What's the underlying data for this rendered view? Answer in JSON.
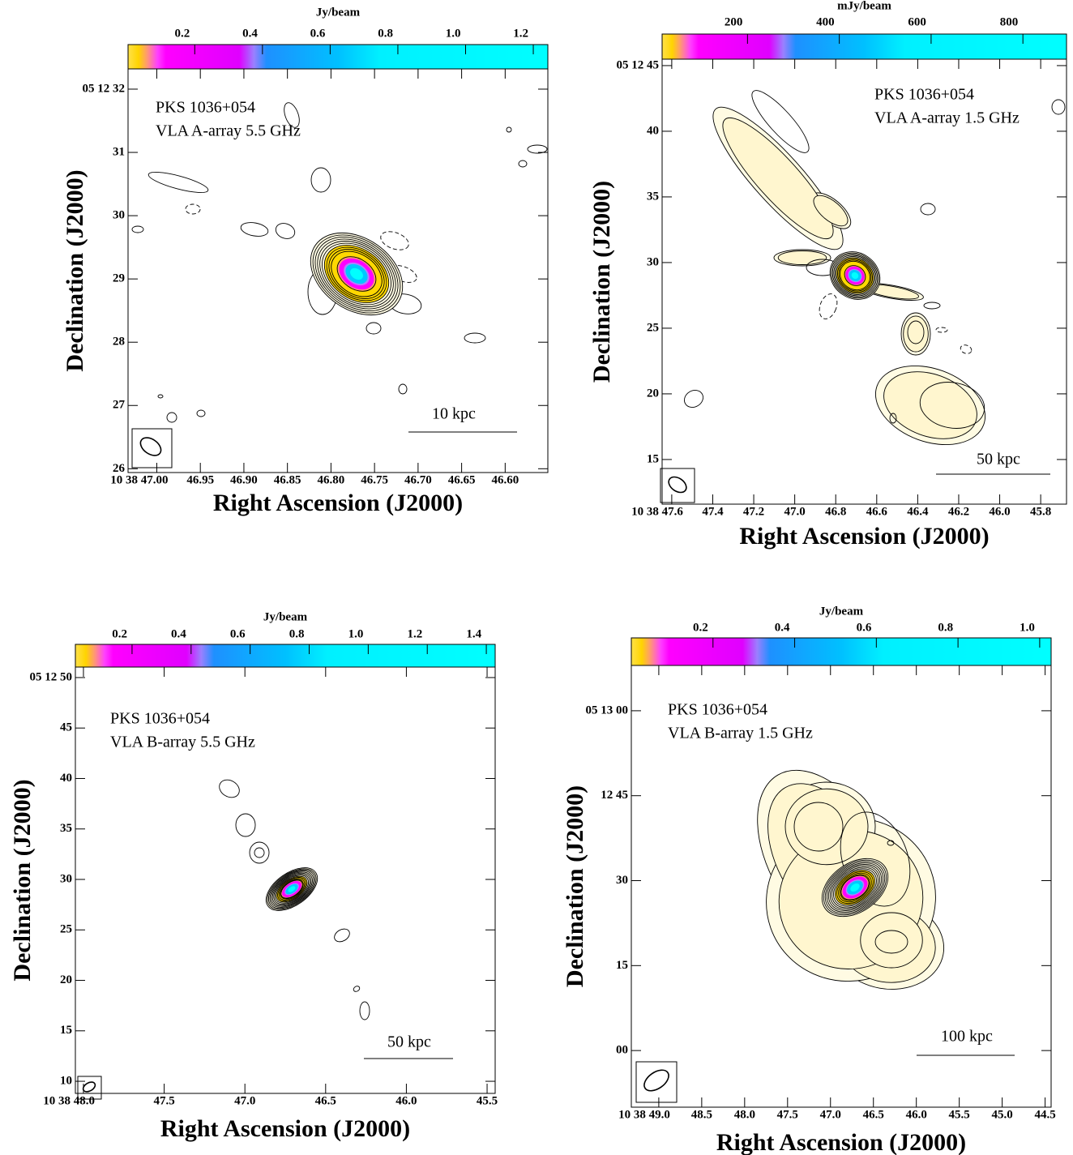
{
  "chart_data": [
    {
      "type": "contour",
      "colorbar_label": "Jy/beam",
      "clim": [
        0.003,
        1.243
      ],
      "cticks": [
        0.2,
        0.4,
        0.6,
        0.8,
        {
          "value": 1,
          "label": "1.0"
        },
        1.2
      ],
      "xlabel": "Right Ascension (J2000)",
      "ylabel": "Declination (J2000)",
      "xlim": [
        47.033,
        46.551
      ],
      "xticks": [
        {
          "value": 47,
          "label": "10 38 47.00"
        },
        46.95,
        {
          "value": 46.9,
          "label": "46.90"
        },
        46.85,
        {
          "value": 46.8,
          "label": "46.80"
        },
        46.75,
        {
          "value": 46.7,
          "label": "46.70"
        },
        46.65,
        {
          "value": 46.6,
          "label": "46.60"
        }
      ],
      "ylim": [
        25.94,
        32.32
      ],
      "yticks": [
        {
          "value": 32,
          "label": "05 12 32"
        },
        31,
        30,
        29,
        28,
        27,
        26
      ],
      "source": "PKS 1036+054",
      "config": "VLA A-array 5.5 GHz",
      "scale_bar": "10 kpc"
    },
    {
      "type": "contour",
      "colorbar_label": "mJy/beam",
      "clim": [
        14,
        895
      ],
      "cticks": [
        200,
        400,
        600,
        800
      ],
      "xlabel": "Right Ascension (J2000)",
      "ylabel": "Declination (J2000)",
      "xlim": [
        47.647,
        45.674
      ],
      "xticks": [
        {
          "value": 47.6,
          "label": "10 38 47.6"
        },
        47.4,
        47.2,
        {
          "value": 47,
          "label": "47.0"
        },
        46.8,
        46.6,
        46.4,
        46.2,
        {
          "value": 46,
          "label": "46.0"
        },
        45.8
      ],
      "ylim": [
        11.6,
        45.49
      ],
      "yticks": [
        {
          "value": 45,
          "label": "05 12 45"
        },
        40,
        35,
        30,
        25,
        20,
        15
      ],
      "source": "PKS 1036+054",
      "config": "VLA A-array 1.5 GHz",
      "scale_bar": "50 kpc"
    },
    {
      "type": "contour",
      "colorbar_label": "Jy/beam",
      "clim": [
        0.008,
        1.43
      ],
      "cticks": [
        0.2,
        0.4,
        0.6,
        0.8,
        {
          "value": 1,
          "label": "1.0"
        },
        1.2,
        1.4
      ],
      "xlabel": "Right Ascension (J2000)",
      "ylabel": "Declination (J2000)",
      "xlim": [
        48.05,
        45.45
      ],
      "xticks": [
        {
          "value": 48,
          "label": "10 38 48.0"
        },
        47.5,
        {
          "value": 47,
          "label": "47.0"
        },
        46.5,
        {
          "value": 46,
          "label": "46.0"
        },
        45.5
      ],
      "ylim": [
        8.8,
        51.04
      ],
      "yticks": [
        {
          "value": 50,
          "label": "05 12 50"
        },
        45,
        40,
        35,
        30,
        25,
        20,
        15,
        10
      ],
      "source": "PKS 1036+054",
      "config": "VLA B-array 5.5 GHz",
      "scale_bar": "50 kpc"
    },
    {
      "type": "contour",
      "colorbar_label": "Jy/beam",
      "clim": [
        0,
        1.028
      ],
      "cticks": [
        0.2,
        0.4,
        0.6,
        0.8,
        {
          "value": 1,
          "label": "1.0"
        }
      ],
      "xlabel": "Right Ascension (J2000)",
      "ylabel": "Declination (J2000)",
      "xlim": [
        49.32,
        44.43
      ],
      "xticks": [
        {
          "value": 49,
          "label": "10 38 49.0"
        },
        48.5,
        {
          "value": 48,
          "label": "48.0"
        },
        47.5,
        {
          "value": 47,
          "label": "47.0"
        },
        46.5,
        {
          "value": 46,
          "label": "46.0"
        },
        45.5,
        {
          "value": 45,
          "label": "45.0"
        },
        44.5
      ],
      "ylim": [
        -10,
        68
      ],
      "yticks": [
        {
          "value": 60,
          "label": "05 13 00"
        },
        {
          "value": 45,
          "label": "12 45"
        },
        30,
        15,
        {
          "value": 0,
          "label": "00"
        }
      ],
      "source": "PKS 1036+054",
      "config": "VLA B-array 1.5 GHz",
      "scale_bar": "100 kpc"
    }
  ]
}
